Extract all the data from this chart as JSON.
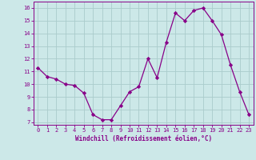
{
  "x": [
    0,
    1,
    2,
    3,
    4,
    5,
    6,
    7,
    8,
    9,
    10,
    11,
    12,
    13,
    14,
    15,
    16,
    17,
    18,
    19,
    20,
    21,
    22,
    23
  ],
  "y": [
    11.3,
    10.6,
    10.4,
    10.0,
    9.9,
    9.3,
    7.6,
    7.2,
    7.2,
    8.3,
    9.4,
    9.8,
    12.0,
    10.5,
    13.3,
    15.6,
    15.0,
    15.8,
    16.0,
    15.0,
    13.9,
    11.5,
    9.4,
    7.6
  ],
  "line_color": "#880088",
  "marker": "D",
  "marker_size": 2.2,
  "bg_color": "#cce8e8",
  "grid_color": "#aacccc",
  "xlabel": "Windchill (Refroidissement éolien,°C)",
  "xlabel_color": "#880088",
  "tick_color": "#880088",
  "spine_color": "#880088",
  "xlim": [
    -0.5,
    23.5
  ],
  "ylim": [
    6.8,
    16.5
  ],
  "yticks": [
    7,
    8,
    9,
    10,
    11,
    12,
    13,
    14,
    15,
    16
  ],
  "xticks": [
    0,
    1,
    2,
    3,
    4,
    5,
    6,
    7,
    8,
    9,
    10,
    11,
    12,
    13,
    14,
    15,
    16,
    17,
    18,
    19,
    20,
    21,
    22,
    23
  ],
  "xtick_labels": [
    "0",
    "1",
    "2",
    "3",
    "4",
    "5",
    "6",
    "7",
    "8",
    "9",
    "10",
    "11",
    "12",
    "13",
    "14",
    "15",
    "16",
    "17",
    "18",
    "19",
    "20",
    "21",
    "22",
    "23"
  ],
  "tick_fontsize": 5.0,
  "xlabel_fontsize": 5.5,
  "linewidth": 0.9
}
